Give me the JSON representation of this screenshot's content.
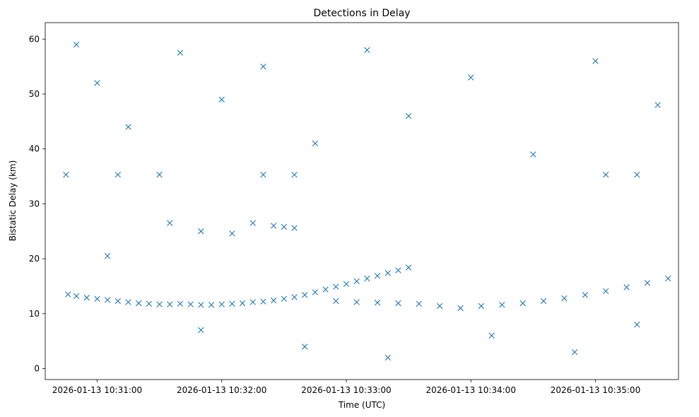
{
  "chart_data": {
    "type": "scatter",
    "title": "Detections in Delay",
    "xlabel": "Time (UTC)",
    "ylabel": "Bistatic Delay (km)",
    "marker": "x",
    "color": "#1f77b4",
    "xlim": [
      "2026-01-13 10:30:35",
      "2026-01-13 10:35:40"
    ],
    "ylim": [
      -2,
      63
    ],
    "x_ticks": [
      "2026-01-13 10:31:00",
      "2026-01-13 10:32:00",
      "2026-01-13 10:33:00",
      "2026-01-13 10:34:00",
      "2026-01-13 10:35:00"
    ],
    "y_ticks": [
      0,
      10,
      20,
      30,
      40,
      50,
      60
    ],
    "grid": false,
    "series": [
      {
        "values": [
          [
            "2026-01-13 10:30:46",
            13.5
          ],
          [
            "2026-01-13 10:30:50",
            13.2
          ],
          [
            "2026-01-13 10:30:55",
            12.9
          ],
          [
            "2026-01-13 10:31:00",
            12.7
          ],
          [
            "2026-01-13 10:31:05",
            12.5
          ],
          [
            "2026-01-13 10:31:10",
            12.3
          ],
          [
            "2026-01-13 10:31:15",
            12.1
          ],
          [
            "2026-01-13 10:31:20",
            11.9
          ],
          [
            "2026-01-13 10:31:25",
            11.8
          ],
          [
            "2026-01-13 10:31:30",
            11.7
          ],
          [
            "2026-01-13 10:31:35",
            11.7
          ],
          [
            "2026-01-13 10:31:40",
            11.8
          ],
          [
            "2026-01-13 10:31:45",
            11.7
          ],
          [
            "2026-01-13 10:31:50",
            11.6
          ],
          [
            "2026-01-13 10:31:55",
            11.6
          ],
          [
            "2026-01-13 10:32:00",
            11.7
          ],
          [
            "2026-01-13 10:32:05",
            11.8
          ],
          [
            "2026-01-13 10:32:10",
            11.9
          ],
          [
            "2026-01-13 10:32:15",
            12.1
          ],
          [
            "2026-01-13 10:32:20",
            12.2
          ],
          [
            "2026-01-13 10:32:25",
            12.4
          ],
          [
            "2026-01-13 10:32:30",
            12.7
          ],
          [
            "2026-01-13 10:32:35",
            13.0
          ],
          [
            "2026-01-13 10:32:40",
            13.4
          ],
          [
            "2026-01-13 10:32:45",
            13.9
          ],
          [
            "2026-01-13 10:32:50",
            14.4
          ],
          [
            "2026-01-13 10:32:55",
            14.9
          ],
          [
            "2026-01-13 10:33:00",
            15.4
          ],
          [
            "2026-01-13 10:33:05",
            15.9
          ],
          [
            "2026-01-13 10:33:10",
            16.4
          ],
          [
            "2026-01-13 10:33:15",
            16.9
          ],
          [
            "2026-01-13 10:33:20",
            17.4
          ],
          [
            "2026-01-13 10:33:25",
            17.9
          ],
          [
            "2026-01-13 10:33:30",
            18.4
          ],
          [
            "2026-01-13 10:32:55",
            12.3
          ],
          [
            "2026-01-13 10:33:05",
            12.1
          ],
          [
            "2026-01-13 10:33:15",
            12.0
          ],
          [
            "2026-01-13 10:33:25",
            11.9
          ],
          [
            "2026-01-13 10:33:35",
            11.8
          ],
          [
            "2026-01-13 10:33:45",
            11.4
          ],
          [
            "2026-01-13 10:33:55",
            11.0
          ],
          [
            "2026-01-13 10:34:05",
            11.4
          ],
          [
            "2026-01-13 10:34:15",
            11.6
          ],
          [
            "2026-01-13 10:34:25",
            11.9
          ],
          [
            "2026-01-13 10:34:35",
            12.3
          ],
          [
            "2026-01-13 10:34:45",
            12.8
          ],
          [
            "2026-01-13 10:34:55",
            13.4
          ],
          [
            "2026-01-13 10:35:05",
            14.1
          ],
          [
            "2026-01-13 10:35:15",
            14.8
          ],
          [
            "2026-01-13 10:35:25",
            15.6
          ],
          [
            "2026-01-13 10:35:35",
            16.4
          ],
          [
            "2026-01-13 10:31:35",
            26.5
          ],
          [
            "2026-01-13 10:31:50",
            25.0
          ],
          [
            "2026-01-13 10:32:05",
            24.6
          ],
          [
            "2026-01-13 10:32:15",
            26.5
          ],
          [
            "2026-01-13 10:32:25",
            26.0
          ],
          [
            "2026-01-13 10:32:30",
            25.8
          ],
          [
            "2026-01-13 10:32:35",
            25.6
          ],
          [
            "2026-01-13 10:30:45",
            35.3
          ],
          [
            "2026-01-13 10:31:10",
            35.3
          ],
          [
            "2026-01-13 10:31:30",
            35.3
          ],
          [
            "2026-01-13 10:32:20",
            35.3
          ],
          [
            "2026-01-13 10:32:35",
            35.3
          ],
          [
            "2026-01-13 10:35:05",
            35.3
          ],
          [
            "2026-01-13 10:35:20",
            35.3
          ],
          [
            "2026-01-13 10:30:50",
            59.0
          ],
          [
            "2026-01-13 10:31:00",
            52.0
          ],
          [
            "2026-01-13 10:31:15",
            44.0
          ],
          [
            "2026-01-13 10:31:40",
            57.5
          ],
          [
            "2026-01-13 10:32:00",
            49.0
          ],
          [
            "2026-01-13 10:32:20",
            55.0
          ],
          [
            "2026-01-13 10:32:45",
            41.0
          ],
          [
            "2026-01-13 10:33:10",
            58.0
          ],
          [
            "2026-01-13 10:33:30",
            46.0
          ],
          [
            "2026-01-13 10:34:00",
            53.0
          ],
          [
            "2026-01-13 10:34:30",
            39.0
          ],
          [
            "2026-01-13 10:35:00",
            56.0
          ],
          [
            "2026-01-13 10:35:30",
            48.0
          ],
          [
            "2026-01-13 10:31:05",
            20.5
          ],
          [
            "2026-01-13 10:31:50",
            7.0
          ],
          [
            "2026-01-13 10:32:40",
            4.0
          ],
          [
            "2026-01-13 10:33:20",
            2.0
          ],
          [
            "2026-01-13 10:34:10",
            6.0
          ],
          [
            "2026-01-13 10:34:50",
            3.0
          ],
          [
            "2026-01-13 10:35:20",
            8.0
          ]
        ]
      }
    ]
  }
}
